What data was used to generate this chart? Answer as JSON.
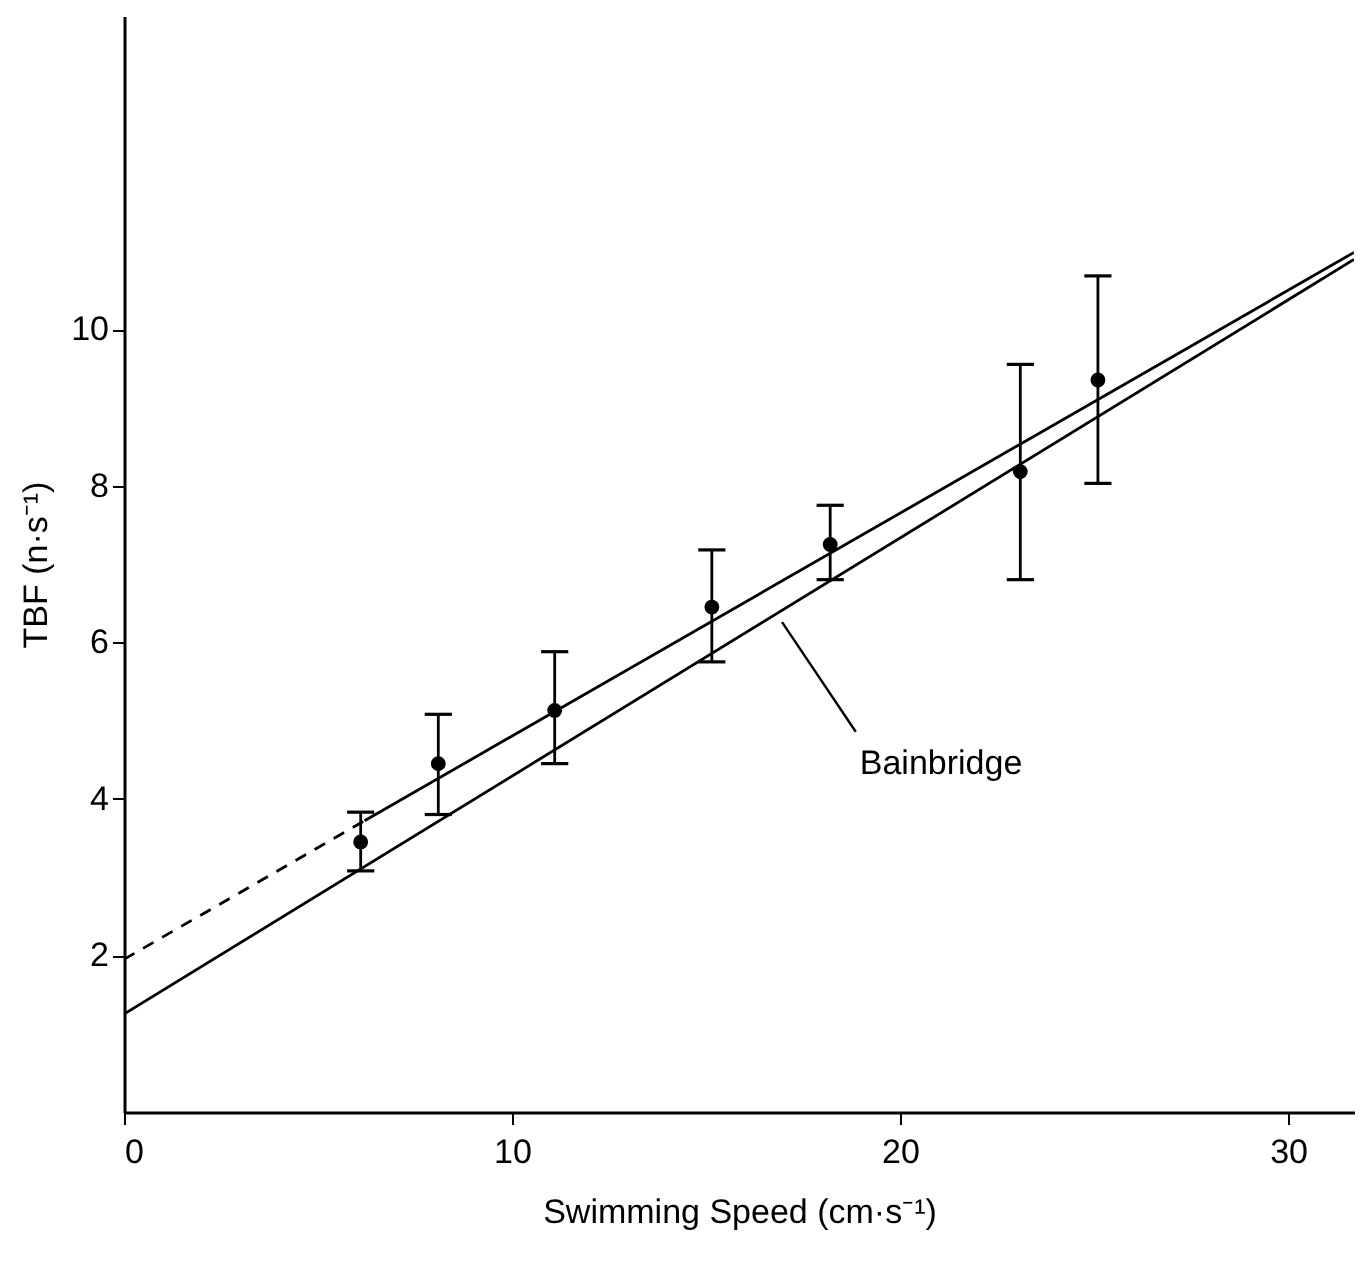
{
  "chart_data": {
    "type": "scatter",
    "xlabel": "Swimming Speed (cm·s⁻¹)",
    "ylabel": "TBF (n·s⁻¹)",
    "xlim": [
      0,
      31.7
    ],
    "ylim": [
      0,
      14
    ],
    "xticks": [
      0,
      10,
      20,
      30
    ],
    "yticks": [
      2,
      4,
      6,
      8,
      10
    ],
    "series": [
      {
        "color": "#000000",
        "marker": "circle",
        "x": [
          6.1,
          8.1,
          11.1,
          15.15,
          18.2,
          23.1,
          25.1
        ],
        "values": [
          3.45,
          4.45,
          5.13,
          6.45,
          7.25,
          8.18,
          9.35
        ],
        "errors": [
          [
            3.08,
            3.83
          ],
          [
            3.8,
            5.08
          ],
          [
            4.45,
            5.88
          ],
          [
            5.75,
            7.18
          ],
          [
            6.8,
            7.75
          ],
          [
            6.8,
            9.55
          ],
          [
            8.03,
            10.68
          ]
        ]
      },
      {
        "type": "line",
        "color": "#000000",
        "line_style": "dashed",
        "marker": "none",
        "x": [
          0,
          6.2
        ],
        "values": [
          1.95,
          3.72
        ]
      },
      {
        "type": "line",
        "color": "#000000",
        "line_style": "solid",
        "marker": "none",
        "x": [
          6.2,
          31.7
        ],
        "values": [
          3.72,
          10.98
        ]
      },
      {
        "type": "line",
        "name": "Bainbridge",
        "color": "#000000",
        "line_style": "solid",
        "marker": "none",
        "x": [
          0,
          31.7
        ],
        "values": [
          1.25,
          10.89
        ]
      }
    ]
  }
}
